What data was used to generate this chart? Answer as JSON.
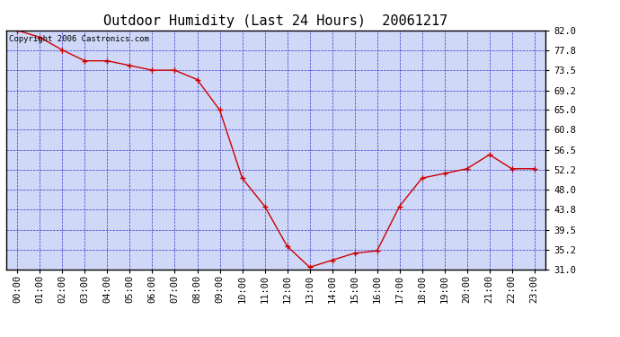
{
  "title": "Outdoor Humidity (Last 24 Hours)  20061217",
  "copyright_text": "Copyright 2006 Castronics.com",
  "x_labels": [
    "00:00",
    "01:00",
    "02:00",
    "03:00",
    "04:00",
    "05:00",
    "06:00",
    "07:00",
    "08:00",
    "09:00",
    "10:00",
    "11:00",
    "12:00",
    "13:00",
    "14:00",
    "15:00",
    "16:00",
    "17:00",
    "18:00",
    "19:00",
    "20:00",
    "21:00",
    "22:00",
    "23:00"
  ],
  "y_values": [
    82.0,
    80.5,
    77.8,
    75.5,
    75.5,
    74.5,
    73.5,
    73.5,
    71.5,
    65.0,
    50.5,
    44.5,
    36.0,
    31.5,
    33.0,
    34.5,
    35.0,
    44.5,
    50.5,
    51.5,
    52.5,
    55.5,
    52.5,
    52.5
  ],
  "ylim": [
    31.0,
    82.0
  ],
  "yticks": [
    31.0,
    35.2,
    39.5,
    43.8,
    48.0,
    52.2,
    56.5,
    60.8,
    65.0,
    69.2,
    73.5,
    77.8,
    82.0
  ],
  "ytick_labels": [
    "31.0",
    "35.2",
    "39.5",
    "43.8",
    "48.0",
    "52.2",
    "56.5",
    "60.8",
    "65.0",
    "69.2",
    "73.5",
    "77.8",
    "82.0"
  ],
  "line_color": "#cc0000",
  "marker_color": "#cc0000",
  "marker_style": "+",
  "background_color": "#ffffff",
  "plot_bg_color": "#d0d8f8",
  "grid_color": "#3333cc",
  "title_color": "#000000",
  "border_color": "#000000",
  "title_fontsize": 11,
  "tick_fontsize": 7.5,
  "copyright_fontsize": 6.5
}
